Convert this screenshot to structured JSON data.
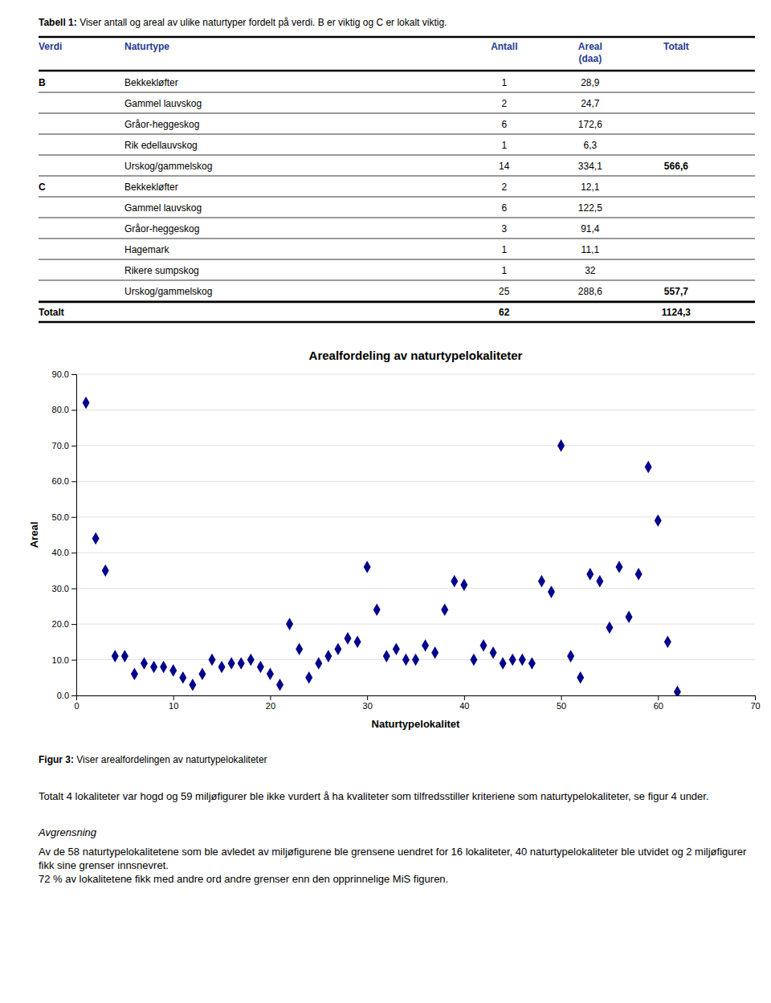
{
  "table": {
    "title_label": "Tabell 1:",
    "title": "Viser antall og areal av ulike naturtyper fordelt på verdi. B er viktig og C er lokalt viktig.",
    "columns": [
      "Verdi",
      "Naturtype",
      "Antall",
      "Areal\n(daa)",
      "Totalt"
    ],
    "rows": [
      [
        "B",
        "Bekkekløfter",
        "1",
        "28,9",
        null
      ],
      [
        null,
        "Gammel lauvskog",
        "2",
        "24,7",
        null
      ],
      [
        null,
        "Gråor-heggeskog",
        "6",
        "172,6",
        null
      ],
      [
        null,
        "Rik edellauvskog",
        "1",
        "6,3",
        null
      ],
      [
        null,
        "Urskog/gammelskog",
        "14",
        "334,1",
        "566,6"
      ],
      [
        "C",
        "Bekkekløfter",
        "2",
        "12,1",
        null
      ],
      [
        null,
        "Gammel lauvskog",
        "6",
        "122,5",
        null
      ],
      [
        null,
        "Gråor-heggeskog",
        "3",
        "91,4",
        null
      ],
      [
        null,
        "Hagemark",
        "1",
        "11,1",
        null
      ],
      [
        null,
        "Rikere sumpskog",
        "1",
        "32",
        null
      ],
      [
        null,
        "Urskog/gammelskog",
        "25",
        "288,6",
        "557,7"
      ],
      [
        "Totalt",
        null,
        "62",
        null,
        "1124,3"
      ]
    ]
  },
  "chart_data": {
    "type": "scatter",
    "title": "Arealfordeling av naturtypelokaliteter",
    "x_label": "Naturtypelokalitet",
    "y_label": "Areal",
    "x": [
      1,
      2,
      3,
      4,
      5,
      6,
      7,
      8,
      9,
      10,
      11,
      12,
      13,
      14,
      15,
      16,
      17,
      18,
      19,
      20,
      21,
      22,
      23,
      24,
      25,
      26,
      27,
      28,
      29,
      30,
      31,
      32,
      33,
      34,
      35,
      36,
      37,
      38,
      39,
      40,
      41,
      42,
      43,
      44,
      45,
      46,
      47,
      48,
      49,
      50,
      51,
      52,
      53,
      54,
      55,
      56,
      57,
      58,
      59,
      60,
      61,
      62
    ],
    "values": [
      82,
      44,
      35,
      11,
      11,
      6,
      9,
      8,
      8,
      7,
      5,
      3,
      6,
      10,
      8,
      9,
      9,
      10,
      8,
      6,
      3,
      20,
      13,
      5,
      9,
      11,
      13,
      16,
      15,
      36,
      24,
      11,
      13,
      10,
      10,
      14,
      12,
      24,
      32,
      31,
      10,
      14,
      12,
      9,
      10,
      10,
      9,
      32,
      29,
      70,
      11,
      5,
      34,
      32,
      19,
      36,
      22,
      34,
      64,
      49,
      15,
      1
    ],
    "color": "#00008B",
    "marker": "diamond",
    "grid": "y",
    "xlim": [
      0,
      70
    ],
    "ylim": [
      0,
      90
    ],
    "xticks": [
      0,
      10,
      20,
      30,
      40,
      50,
      60,
      70
    ],
    "yticks": [
      {
        "value": 0,
        "label": "0.0"
      },
      {
        "value": 10,
        "label": "10.0"
      },
      {
        "value": 20,
        "label": "20.0"
      },
      {
        "value": 30,
        "label": "30.0"
      },
      {
        "value": 40,
        "label": "40.0"
      },
      {
        "value": 50,
        "label": "50.0"
      },
      {
        "value": 60,
        "label": "60.0"
      },
      {
        "value": 70,
        "label": "70.0"
      },
      {
        "value": 80,
        "label": "80.0"
      },
      {
        "value": 90,
        "label": "90.0"
      }
    ]
  },
  "caption": {
    "label": "Figur 3:",
    "text": "Viser arealfordelingen av naturtypelokaliteter"
  },
  "paragraphs": [
    {
      "text": "Totalt 4 lokaliteter var hogd og 59 miljøfigurer ble ikke vurdert å ha kvaliteter som tilfredsstiller kriteriene som naturtypelokaliteter, se figur 4 under."
    },
    {
      "title": "Avgrensning",
      "text": "Av de 58 naturtypelokalitetene som ble avledet av miljøfigurene ble grensene uendret for 16 lokaliteter, 40 naturtypelokaliteter ble utvidet og 2 miljøfigurer fikk sine grenser innsnevret.\n72 % av lokalitetene fikk med andre ord andre grenser enn den opprinnelige MiS figuren."
    }
  ]
}
